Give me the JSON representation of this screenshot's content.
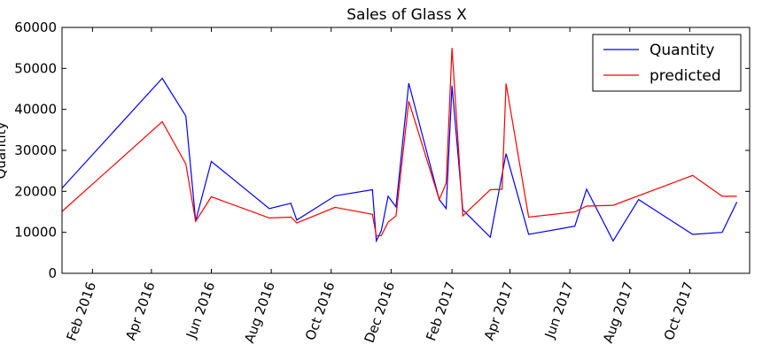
{
  "chart_data": {
    "type": "line",
    "title": "Sales of Glass X",
    "xlabel": "",
    "ylabel": "Quantity",
    "ylim": [
      0,
      60000
    ],
    "xlim": [
      "2016-01-01",
      "2017-12-01"
    ],
    "yticks": [
      0,
      10000,
      20000,
      30000,
      40000,
      50000,
      60000
    ],
    "yticklabels": [
      "0",
      "10000",
      "20000",
      "30000",
      "40000",
      "50000",
      "60000"
    ],
    "xticks": [
      "2016-02-01",
      "2016-04-01",
      "2016-06-01",
      "2016-08-01",
      "2016-10-01",
      "2016-12-01",
      "2017-02-01",
      "2017-04-01",
      "2017-06-01",
      "2017-08-01",
      "2017-10-01"
    ],
    "xticklabels": [
      "Feb 2016",
      "Apr 2016",
      "Jun 2016",
      "Aug 2016",
      "Oct 2016",
      "Dec 2016",
      "Feb 2017",
      "Apr 2017",
      "Jun 2017",
      "Aug 2017",
      "Oct 2017"
    ],
    "grid": false,
    "legend": "top-right",
    "series": [
      {
        "name": "Quantity",
        "color": "#0000ff",
        "points": [
          [
            "2016-01-01",
            20800
          ],
          [
            "2016-04-12",
            47600
          ],
          [
            "2016-05-06",
            38400
          ],
          [
            "2016-05-16",
            12800
          ],
          [
            "2016-06-01",
            27300
          ],
          [
            "2016-07-30",
            15800
          ],
          [
            "2016-08-21",
            17100
          ],
          [
            "2016-08-27",
            13000
          ],
          [
            "2016-10-05",
            18900
          ],
          [
            "2016-11-12",
            20400
          ],
          [
            "2016-11-16",
            7900
          ],
          [
            "2016-11-21",
            10400
          ],
          [
            "2016-11-28",
            18800
          ],
          [
            "2016-12-06",
            16200
          ],
          [
            "2016-12-19",
            46400
          ],
          [
            "2017-01-19",
            18000
          ],
          [
            "2017-01-26",
            15800
          ],
          [
            "2017-02-01",
            45800
          ],
          [
            "2017-02-12",
            15500
          ],
          [
            "2017-03-12",
            8800
          ],
          [
            "2017-03-28",
            29200
          ],
          [
            "2017-04-20",
            9500
          ],
          [
            "2017-06-06",
            11500
          ],
          [
            "2017-06-18",
            20500
          ],
          [
            "2017-07-15",
            7900
          ],
          [
            "2017-08-10",
            18000
          ],
          [
            "2017-10-04",
            9500
          ],
          [
            "2017-11-03",
            10000
          ],
          [
            "2017-11-18",
            17400
          ]
        ]
      },
      {
        "name": "predicted",
        "color": "#ff0000",
        "points": [
          [
            "2016-01-01",
            15100
          ],
          [
            "2016-04-12",
            37000
          ],
          [
            "2016-05-06",
            26700
          ],
          [
            "2016-05-16",
            12700
          ],
          [
            "2016-06-01",
            18700
          ],
          [
            "2016-07-30",
            13500
          ],
          [
            "2016-08-21",
            13700
          ],
          [
            "2016-08-27",
            12300
          ],
          [
            "2016-10-05",
            16100
          ],
          [
            "2016-11-12",
            14400
          ],
          [
            "2016-11-16",
            9100
          ],
          [
            "2016-11-21",
            9200
          ],
          [
            "2016-11-28",
            12500
          ],
          [
            "2016-12-06",
            14000
          ],
          [
            "2016-12-19",
            42000
          ],
          [
            "2017-01-19",
            18000
          ],
          [
            "2017-01-26",
            22000
          ],
          [
            "2017-02-01",
            55000
          ],
          [
            "2017-02-12",
            14000
          ],
          [
            "2017-03-12",
            20400
          ],
          [
            "2017-03-24",
            20500
          ],
          [
            "2017-03-28",
            46300
          ],
          [
            "2017-04-20",
            13700
          ],
          [
            "2017-06-06",
            15000
          ],
          [
            "2017-06-18",
            16400
          ],
          [
            "2017-07-15",
            16600
          ],
          [
            "2017-10-04",
            23900
          ],
          [
            "2017-11-03",
            18800
          ],
          [
            "2017-11-18",
            18800
          ]
        ]
      }
    ]
  }
}
